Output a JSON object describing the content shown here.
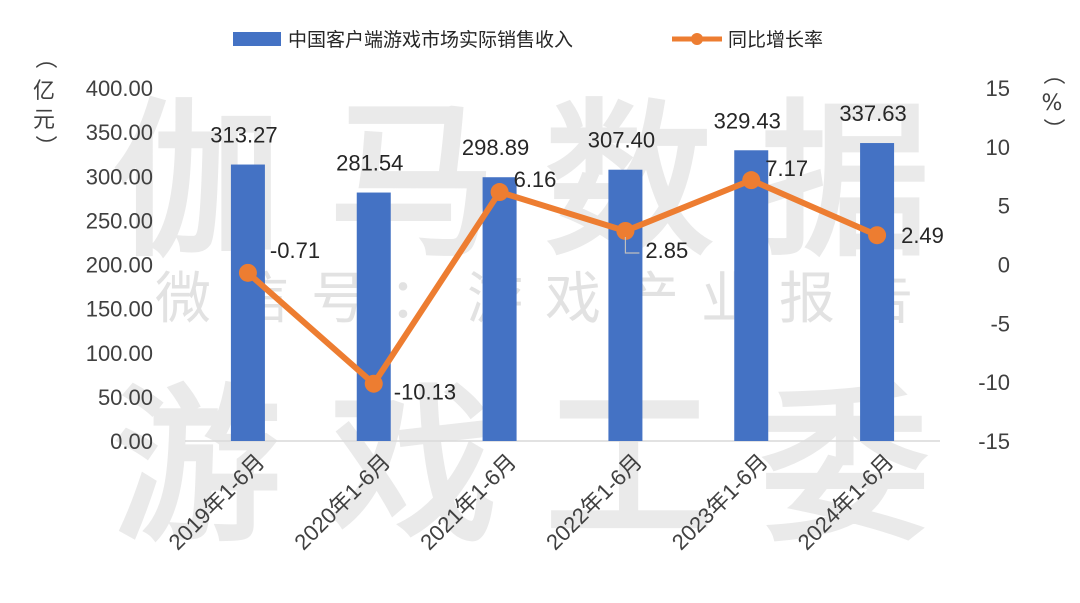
{
  "watermark": {
    "line1": "伽马数据",
    "line2": "微信号：游戏产业报告",
    "line3": "游戏工委"
  },
  "legend": {
    "bar": "中国客户端游戏市场实际销售收入",
    "line": "同比增长率"
  },
  "units": {
    "left": [
      "（",
      "亿",
      "元",
      "）"
    ],
    "right": [
      "（",
      "%",
      "）"
    ]
  },
  "colors": {
    "bar": "#4472c4",
    "line": "#ed7d31",
    "leader": "#bfbfbf"
  },
  "chart_data": {
    "type": "bar+line",
    "categories": [
      "2019年1-6月",
      "2020年1-6月",
      "2021年1-6月",
      "2022年1-6月",
      "2023年1-6月",
      "2024年1-6月"
    ],
    "series": [
      {
        "name": "中国客户端游戏市场实际销售收入",
        "type": "bar",
        "axis": "left",
        "values": [
          313.27,
          281.54,
          298.89,
          307.4,
          329.43,
          337.63
        ],
        "labels": [
          "313.27",
          "281.54",
          "298.89",
          "307.40",
          "329.43",
          "337.63"
        ]
      },
      {
        "name": "同比增长率",
        "type": "line",
        "axis": "right",
        "values": [
          -0.71,
          -10.13,
          6.16,
          2.85,
          7.17,
          2.49
        ],
        "labels": [
          "-0.71",
          "-10.13",
          "6.16",
          "2.85",
          "7.17",
          "2.49"
        ]
      }
    ],
    "y_left": {
      "min": 0,
      "max": 400,
      "step": 50,
      "ticks": [
        "0.00",
        "50.00",
        "100.00",
        "150.00",
        "200.00",
        "250.00",
        "300.00",
        "350.00",
        "400.00"
      ]
    },
    "y_right": {
      "min": -15,
      "max": 15,
      "step": 5,
      "ticks": [
        "-15",
        "-10",
        "-5",
        "0",
        "5",
        "10",
        "15"
      ]
    },
    "grid": false,
    "legend_position": "top"
  }
}
